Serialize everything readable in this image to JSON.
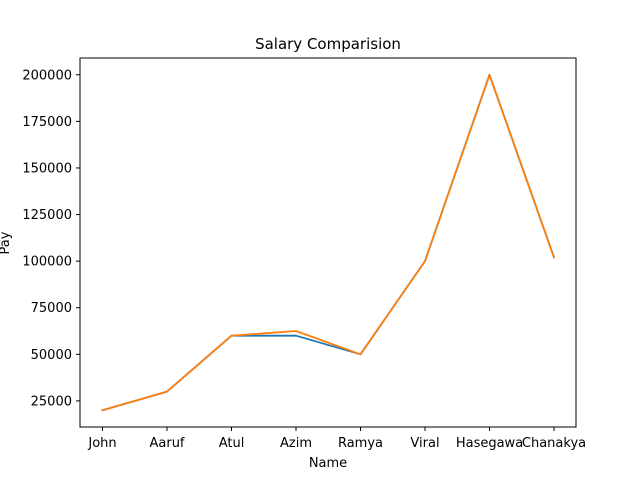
{
  "chart_data": {
    "type": "line",
    "title": "Salary Comparision",
    "xlabel": "Name",
    "ylabel": "Pay",
    "categories": [
      "John",
      "Aaruf",
      "Atul",
      "Azim",
      "Ramya",
      "Viral",
      "Hasegawa",
      "Chanakya"
    ],
    "series": [
      {
        "color": "#1f77b4",
        "values": [
          20000,
          30000,
          60000,
          60000,
          50000,
          100000,
          200000,
          102000
        ]
      },
      {
        "color": "#ff7f0e",
        "values": [
          20000,
          30000,
          60000,
          62500,
          50000,
          100000,
          200000,
          102000
        ]
      }
    ],
    "ylim": [
      11000,
      209000
    ],
    "yticks": [
      25000,
      50000,
      75000,
      100000,
      125000,
      150000,
      175000,
      200000
    ],
    "grid": false
  }
}
